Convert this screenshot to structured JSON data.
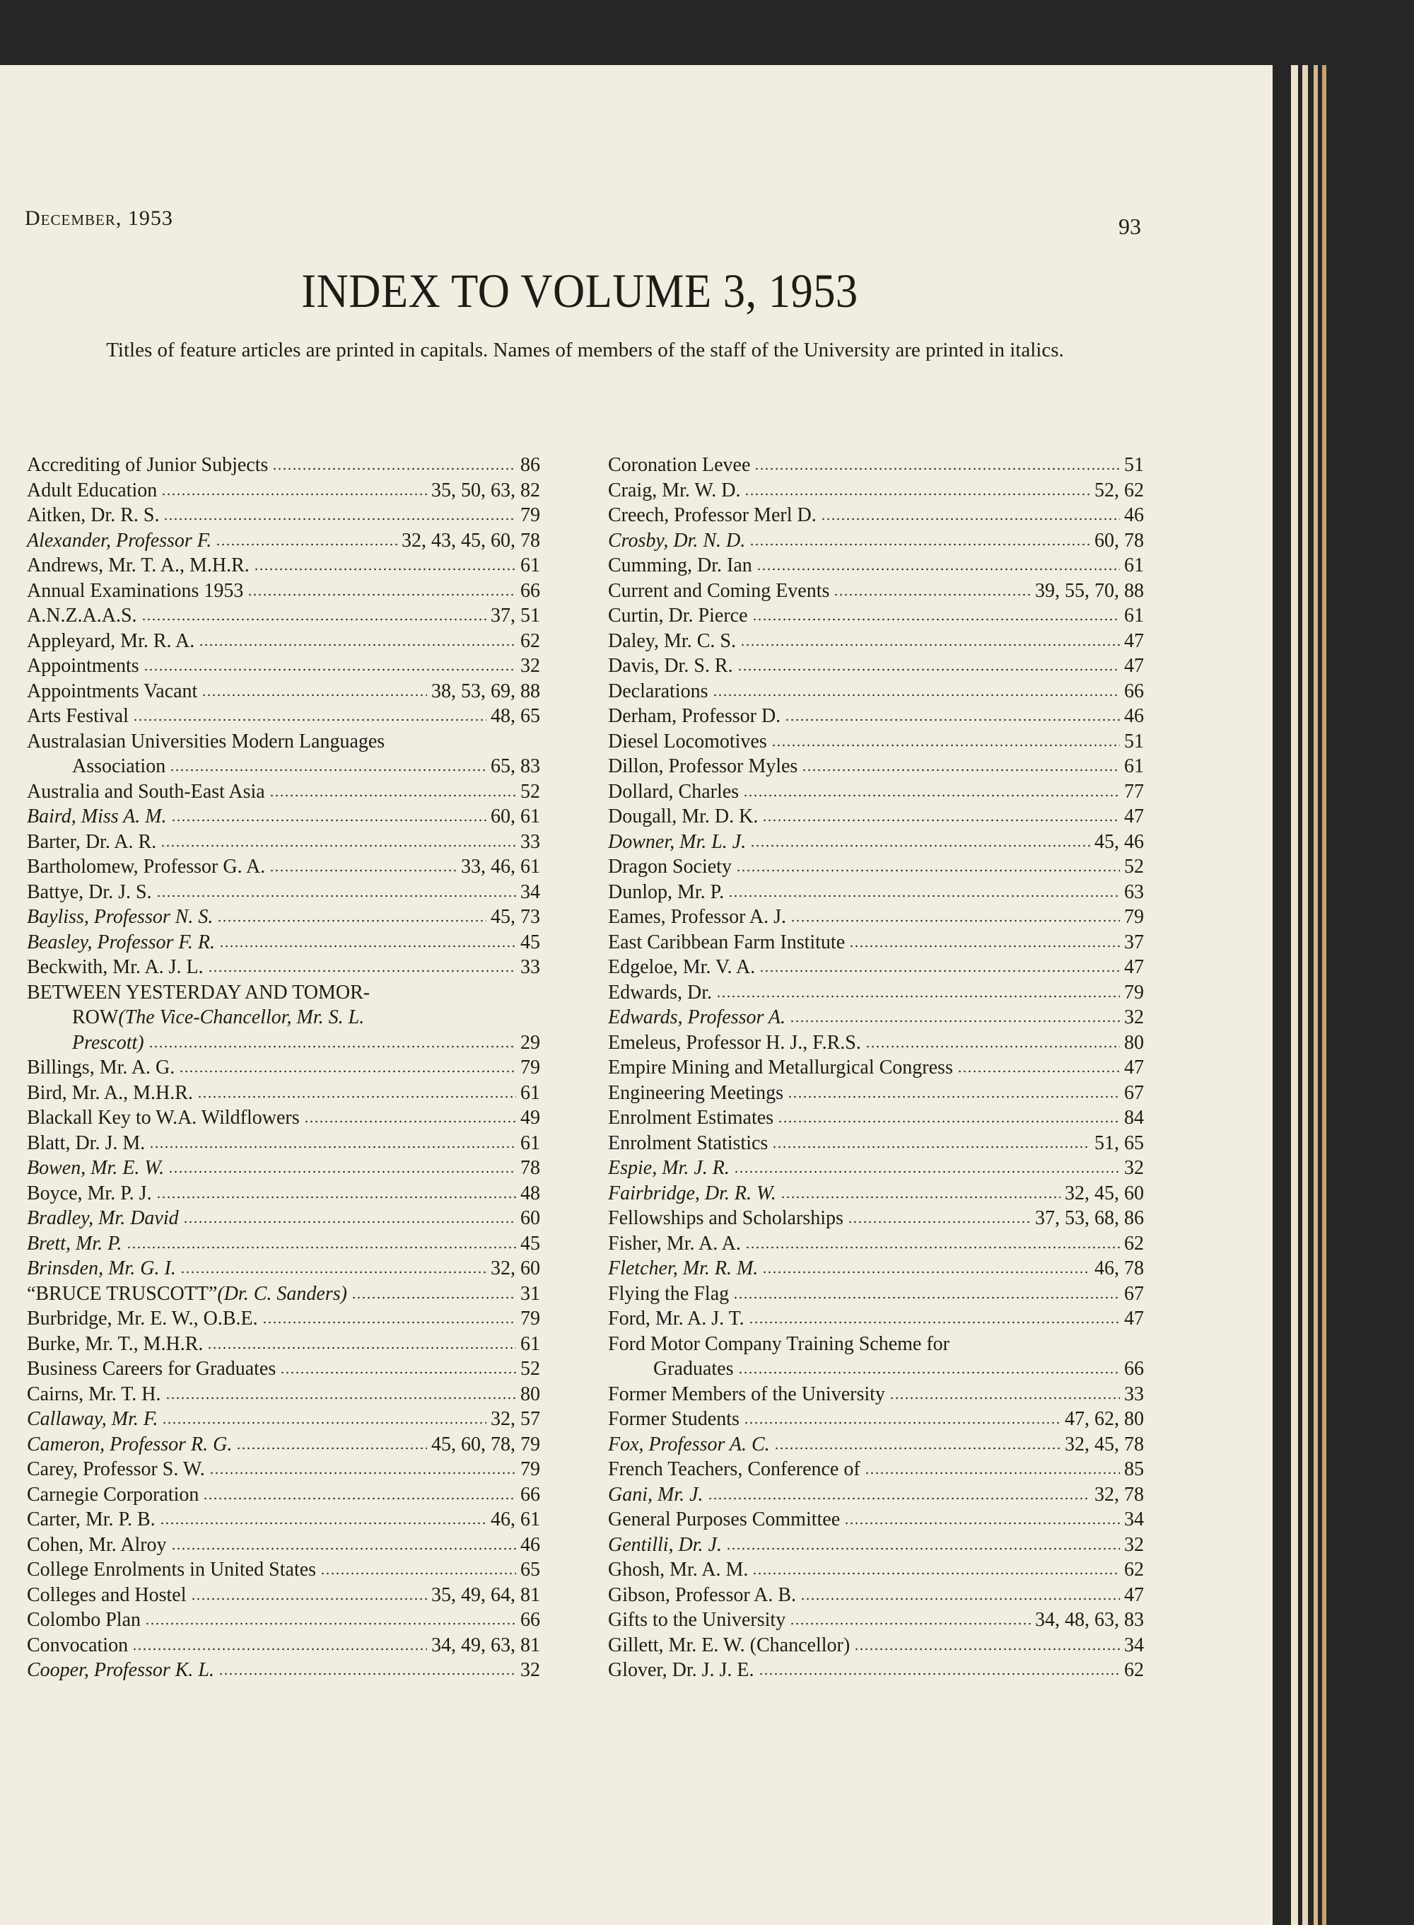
{
  "header": {
    "running_head": "December, 1953",
    "page_number": "93"
  },
  "title": "INDEX TO VOLUME 3, 1953",
  "note": "Titles of feature articles are printed in capitals. Names of members of the staff of the University are printed in italics.",
  "left_column": [
    {
      "t": "Accrediting of Junior Subjects",
      "p": "86"
    },
    {
      "t": "Adult Education",
      "p": "35, 50, 63, 82"
    },
    {
      "t": "Aitken, Dr. R. S.",
      "p": "79"
    },
    {
      "t": "Alexander, Professor F.",
      "i": true,
      "p": "32, 43, 45, 60, 78"
    },
    {
      "t": "Andrews, Mr. T. A., M.H.R.",
      "p": "61"
    },
    {
      "t": "Annual Examinations 1953",
      "p": "66"
    },
    {
      "t": "A.N.Z.A.A.S.",
      "p": "37, 51"
    },
    {
      "t": "Appleyard, Mr. R. A.",
      "p": "62"
    },
    {
      "t": "Appointments",
      "p": "32"
    },
    {
      "t": "Appointments Vacant",
      "p": "38, 53, 69, 88"
    },
    {
      "t": "Arts Festival",
      "p": "48, 65"
    },
    {
      "lines": [
        [
          {
            "t": "Australasian Universities Modern Languages"
          }
        ],
        [
          {
            "t": "Association"
          }
        ]
      ],
      "p": "65, 83"
    },
    {
      "t": "Australia and South-East Asia",
      "p": "52"
    },
    {
      "t": "Baird, Miss A. M.",
      "i": true,
      "p": "60, 61"
    },
    {
      "t": "Barter, Dr. A. R.",
      "p": "33"
    },
    {
      "t": "Bartholomew, Professor G. A.",
      "p": "33, 46, 61"
    },
    {
      "t": "Battye, Dr. J. S.",
      "p": "34"
    },
    {
      "t": "Bayliss, Professor N. S.",
      "i": true,
      "p": "45, 73"
    },
    {
      "t": "Beasley, Professor F. R.",
      "i": true,
      "p": "45"
    },
    {
      "t": "Beckwith, Mr. A. J. L.",
      "p": "33"
    },
    {
      "lines": [
        [
          {
            "t": "BETWEEN YESTERDAY AND TOMOR-"
          }
        ],
        [
          {
            "t": "ROW "
          },
          {
            "t": "(The Vice-Chancellor, Mr. S. L.",
            "i": true
          }
        ],
        [
          {
            "t": "Prescott)",
            "i": true
          }
        ]
      ],
      "p": "29"
    },
    {
      "t": "Billings, Mr. A. G.",
      "p": "79"
    },
    {
      "t": "Bird, Mr. A., M.H.R.",
      "p": "61"
    },
    {
      "t": "Blackall Key to W.A. Wildflowers",
      "p": "49"
    },
    {
      "t": "Blatt, Dr. J. M.",
      "p": "61"
    },
    {
      "t": "Bowen, Mr. E. W.",
      "i": true,
      "p": "78"
    },
    {
      "t": "Boyce, Mr. P. J.",
      "p": "48"
    },
    {
      "t": "Bradley, Mr. David",
      "i": true,
      "p": "60"
    },
    {
      "t": "Brett, Mr. P.",
      "i": true,
      "p": "45"
    },
    {
      "t": "Brinsden, Mr. G. I.",
      "i": true,
      "p": "32, 60"
    },
    {
      "lines": [
        [
          {
            "t": "“BRUCE TRUSCOTT” "
          },
          {
            "t": "(Dr. C. Sanders)",
            "i": true
          }
        ]
      ],
      "p": "31"
    },
    {
      "t": "Burbridge, Mr. E. W., O.B.E.",
      "p": "79"
    },
    {
      "t": "Burke, Mr. T., M.H.R.",
      "p": "61"
    },
    {
      "t": "Business Careers for Graduates",
      "p": "52"
    },
    {
      "t": "Cairns, Mr. T. H.",
      "p": "80"
    },
    {
      "t": "Callaway, Mr. F.",
      "i": true,
      "p": "32, 57"
    },
    {
      "t": "Cameron, Professor R. G.",
      "i": true,
      "p": "45, 60, 78, 79"
    },
    {
      "t": "Carey, Professor S. W.",
      "p": "79"
    },
    {
      "t": "Carnegie Corporation",
      "p": "66"
    },
    {
      "t": "Carter, Mr. P. B.",
      "p": "46, 61"
    },
    {
      "t": "Cohen, Mr. Alroy",
      "p": "46"
    },
    {
      "t": "College Enrolments in United States",
      "p": "65"
    },
    {
      "t": "Colleges and Hostel",
      "p": "35, 49, 64, 81"
    },
    {
      "t": "Colombo Plan",
      "p": "66"
    },
    {
      "t": "Convocation",
      "p": "34, 49, 63, 81"
    },
    {
      "t": "Cooper, Professor K. L.",
      "i": true,
      "p": "32"
    }
  ],
  "right_column": [
    {
      "t": "Coronation Levee",
      "p": "51"
    },
    {
      "t": "Craig, Mr. W. D.",
      "p": "52, 62"
    },
    {
      "t": "Creech, Professor Merl D.",
      "p": "46"
    },
    {
      "t": "Crosby, Dr. N. D.",
      "i": true,
      "p": "60, 78"
    },
    {
      "t": "Cumming, Dr. Ian",
      "p": "61"
    },
    {
      "t": "Current and Coming Events",
      "p": "39, 55, 70, 88"
    },
    {
      "t": "Curtin, Dr. Pierce",
      "p": "61"
    },
    {
      "t": "Daley, Mr. C. S.",
      "p": "47"
    },
    {
      "t": "Davis, Dr. S. R.",
      "p": "47"
    },
    {
      "t": "Declarations",
      "p": "66"
    },
    {
      "t": "Derham, Professor D.",
      "p": "46"
    },
    {
      "t": "Diesel Locomotives",
      "p": "51"
    },
    {
      "t": "Dillon, Professor Myles",
      "p": "61"
    },
    {
      "t": "Dollard, Charles",
      "p": "77"
    },
    {
      "t": "Dougall, Mr. D. K.",
      "p": "47"
    },
    {
      "t": "Downer, Mr. L. J.",
      "i": true,
      "p": "45, 46"
    },
    {
      "t": "Dragon Society",
      "p": "52"
    },
    {
      "t": "Dunlop, Mr. P.",
      "p": "63"
    },
    {
      "t": "Eames, Professor A. J.",
      "p": "79"
    },
    {
      "t": "East Caribbean Farm Institute",
      "p": "37"
    },
    {
      "t": "Edgeloe, Mr. V. A.",
      "p": "47"
    },
    {
      "t": "Edwards, Dr.",
      "p": "79"
    },
    {
      "t": "Edwards, Professor A.",
      "i": true,
      "p": "32"
    },
    {
      "t": "Emeleus, Professor H. J., F.R.S.",
      "p": "80"
    },
    {
      "t": "Empire Mining and Metallurgical Congress",
      "p": "47"
    },
    {
      "t": "Engineering Meetings",
      "p": "67"
    },
    {
      "t": "Enrolment Estimates",
      "p": "84"
    },
    {
      "t": "Enrolment Statistics",
      "p": "51, 65"
    },
    {
      "t": "Espie, Mr. J. R.",
      "i": true,
      "p": "32"
    },
    {
      "t": "Fairbridge, Dr. R. W.",
      "i": true,
      "p": "32, 45, 60"
    },
    {
      "t": "Fellowships and Scholarships",
      "p": "37, 53, 68, 86"
    },
    {
      "t": "Fisher, Mr. A. A.",
      "p": "62"
    },
    {
      "t": "Fletcher, Mr. R. M.",
      "i": true,
      "p": "46, 78"
    },
    {
      "t": "Flying the Flag",
      "p": "67"
    },
    {
      "t": "Ford, Mr. A. J. T.",
      "p": "47"
    },
    {
      "lines": [
        [
          {
            "t": "Ford Motor Company Training Scheme for"
          }
        ],
        [
          {
            "t": "Graduates"
          }
        ]
      ],
      "p": "66"
    },
    {
      "t": "Former Members of the University",
      "p": "33"
    },
    {
      "t": "Former Students",
      "p": "47, 62, 80"
    },
    {
      "t": "Fox, Professor A. C.",
      "i": true,
      "p": "32, 45, 78"
    },
    {
      "t": "French Teachers, Conference of",
      "p": "85"
    },
    {
      "t": "Gani, Mr. J.",
      "i": true,
      "p": "32, 78"
    },
    {
      "t": "General Purposes Committee",
      "p": "34"
    },
    {
      "t": "Gentilli, Dr. J.",
      "i": true,
      "p": "32"
    },
    {
      "t": "Ghosh, Mr. A. M.",
      "p": "62"
    },
    {
      "t": "Gibson, Professor A. B.",
      "p": "47"
    },
    {
      "t": "Gifts to the University",
      "p": "34, 48, 63, 83"
    },
    {
      "t": "Gillett, Mr. E. W. (Chancellor)",
      "p": "34"
    },
    {
      "t": "Glover, Dr. J. J. E.",
      "p": "62"
    }
  ]
}
